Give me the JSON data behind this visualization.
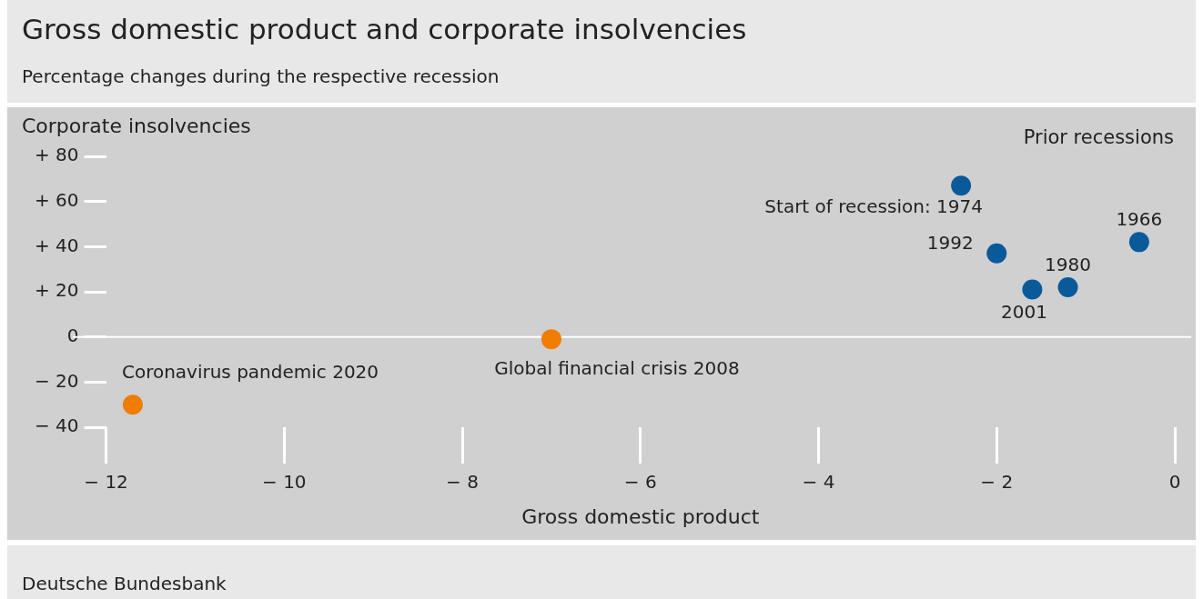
{
  "chart_data": {
    "type": "scatter",
    "title": "Gross domestic product and corporate insolvencies",
    "subtitle": "Percentage changes during the respective recession",
    "xlabel": "Gross domestic product",
    "ylabel": "Corporate insolvencies",
    "series": [
      {
        "color": "#ef7d00",
        "x": [
          -11.7,
          -7.0
        ],
        "values": [
          -30,
          -1
        ]
      },
      {
        "name": "Prior recessions",
        "color": "#0a5a9a",
        "x": [
          -2.4,
          -2.0,
          -1.2,
          -1.6,
          -0.4
        ],
        "values": [
          67,
          37,
          22,
          21,
          42
        ]
      }
    ],
    "xlim": [
      -12,
      0
    ],
    "xticks": [
      {
        "value": -12,
        "label": "− 12"
      },
      {
        "value": -10,
        "label": "− 10"
      },
      {
        "value": -8,
        "label": "− 8"
      },
      {
        "value": -6,
        "label": "− 6"
      },
      {
        "value": -4,
        "label": "− 4"
      },
      {
        "value": -2,
        "label": "− 2"
      },
      0
    ],
    "ylim": [
      -40,
      80
    ],
    "yticks": [
      {
        "value": -40,
        "label": "− 40"
      },
      {
        "value": -20,
        "label": "− 20"
      },
      0,
      {
        "value": 20,
        "label": "+ 20"
      },
      {
        "value": 40,
        "label": "+ 40"
      },
      {
        "value": 60,
        "label": "+ 60"
      },
      {
        "value": 80,
        "label": "+ 80"
      }
    ],
    "ref_lines": [
      {
        "axis": "y",
        "value": 0,
        "color": "#ffffff"
      }
    ],
    "annotations": [
      {
        "text": "Coronavirus pandemic 2020",
        "x": -11.7,
        "y": -30
      },
      {
        "text": "Global financial crisis 2008",
        "x": -7.0,
        "y": -1
      },
      {
        "text": "Start of recession: 1974",
        "x": -2.4,
        "y": 67
      },
      {
        "text": "1992",
        "x": -2.0,
        "y": 37
      },
      {
        "text": "1980",
        "x": -1.2,
        "y": 22
      },
      {
        "text": "2001",
        "x": -1.6,
        "y": 21
      },
      {
        "text": "1966",
        "x": -0.4,
        "y": 42
      },
      "Deutsche Bundesbank"
    ],
    "marker": "circle",
    "grid": false,
    "legend": false
  }
}
